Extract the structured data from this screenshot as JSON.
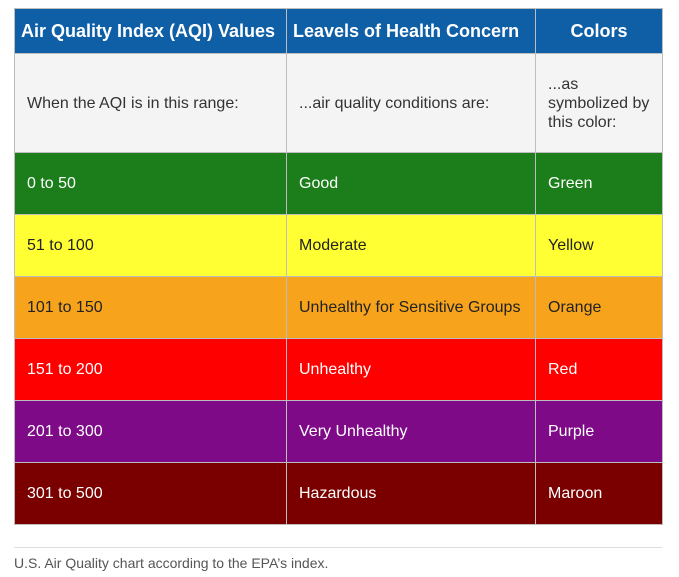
{
  "table": {
    "headers": [
      "Air Quality Index (AQI) Values",
      "Leavels of Health Concern",
      "Colors"
    ],
    "intro": [
      "When the AQI is in this range:",
      "...air quality conditions are:",
      "...as symbolized by this color:"
    ],
    "rows": [
      {
        "range": "0 to 50",
        "level": "Good",
        "color_name": "Green",
        "color": "#1b7e1b"
      },
      {
        "range": "51 to 100",
        "level": "Moderate",
        "color_name": "Yellow",
        "color": "#ffff33"
      },
      {
        "range": "101 to 150",
        "level": "Unhealthy for Sensitive Groups",
        "color_name": "Orange",
        "color": "#f7a41c"
      },
      {
        "range": "151 to 200",
        "level": "Unhealthy",
        "color_name": "Red",
        "color": "#ff0000"
      },
      {
        "range": "201 to 300",
        "level": "Very Unhealthy",
        "color_name": "Purple",
        "color": "#7e0a88"
      },
      {
        "range": "301 to 500",
        "level": "Hazardous",
        "color_name": "Maroon",
        "color": "#7a0000"
      }
    ]
  },
  "caption": "U.S. Air Quality chart according to the EPA’s index.",
  "colors": {
    "header_bg": "#0f5fa6",
    "intro_bg": "#f4f4f4"
  }
}
